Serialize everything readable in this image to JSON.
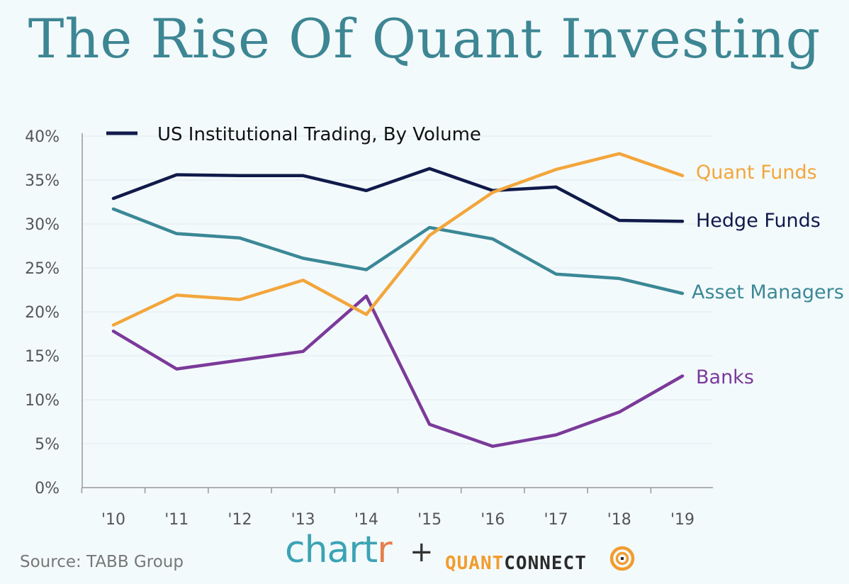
{
  "title": "The Rise Of Quant Investing",
  "footer": {
    "source": "Source: TABB Group",
    "brand_chartr_main": "chart",
    "brand_chartr_r": "r",
    "plus": "+",
    "brand_quant": "QUANT",
    "brand_connect": "CONNECT",
    "brand_logo_icon": "quantconnect-logo-icon"
  },
  "chart_data": {
    "type": "line",
    "title": "The Rise Of Quant Investing",
    "legend": {
      "label": "US Institutional Trading, By Volume",
      "placement": "top-left"
    },
    "categories": [
      "'10",
      "'11",
      "'12",
      "'13",
      "'14",
      "'15",
      "'16",
      "'17",
      "'18",
      "'19"
    ],
    "ylim": [
      0,
      40
    ],
    "yticks": [
      "0%",
      "5%",
      "10%",
      "15%",
      "20%",
      "25%",
      "30%",
      "35%",
      "40%"
    ],
    "ytick_values": [
      0,
      5,
      10,
      15,
      20,
      25,
      30,
      35,
      40
    ],
    "grid": true,
    "series": [
      {
        "name": "Quant Funds",
        "color": "#f3a63c",
        "values": [
          18.5,
          21.9,
          21.4,
          23.6,
          19.7,
          28.7,
          33.6,
          36.2,
          38.0,
          35.5
        ]
      },
      {
        "name": "Hedge Funds",
        "color": "#101a4a",
        "values": [
          32.9,
          35.6,
          35.5,
          35.5,
          33.8,
          36.3,
          33.8,
          34.2,
          30.4,
          30.3
        ]
      },
      {
        "name": "Asset Managers",
        "color": "#3b8896",
        "values": [
          31.7,
          28.9,
          28.4,
          26.1,
          24.8,
          29.6,
          28.3,
          24.3,
          23.8,
          22.1
        ]
      },
      {
        "name": "Banks",
        "color": "#7b3a9a",
        "values": [
          17.8,
          13.5,
          14.5,
          15.5,
          21.8,
          7.2,
          4.7,
          6.0,
          8.6,
          12.7
        ]
      }
    ]
  }
}
